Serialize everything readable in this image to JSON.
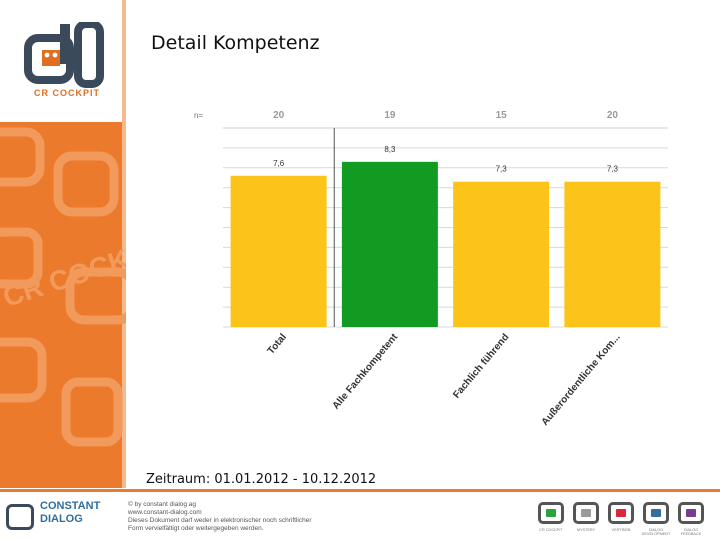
{
  "page": {
    "title": "Detail Kompetenz",
    "period": "Zeitraum: 01.01.2012 - 10.12.2012"
  },
  "branding": {
    "logo_text": "CR COCKPIT",
    "watermark_text": "CR COCKPIT",
    "footer_brand_line1": "CONSTANT",
    "footer_brand_line2": "DIALOG",
    "footer_lines": [
      "© by constant dialog ag",
      "www.constant-dialog.com",
      "Dieses Dokument darf weder in elektronischer noch schriftlicher",
      "Form vervielfältigt oder weitergegeben werden."
    ],
    "footer_icons": [
      {
        "name": "cr-cockpit",
        "color": "#2aa33a",
        "label": "CR COCKPIT"
      },
      {
        "name": "mystery",
        "color": "#9a9a9a",
        "label": "MYSTERY"
      },
      {
        "name": "vertrieb",
        "color": "#d8283a",
        "label": "VERTRIEB"
      },
      {
        "name": "dialog-development",
        "color": "#2f6e9e",
        "label": "DIALOG DEVELOPMENT"
      },
      {
        "name": "dialog-feedback",
        "color": "#7a3a8e",
        "label": "DIALOG FEEDBACK"
      }
    ],
    "colors": {
      "orange": "#ec7a2c",
      "dark": "#3a4a5a"
    }
  },
  "chart_data": {
    "type": "bar",
    "title": "",
    "n_label": "n=",
    "categories": [
      "Total",
      "Alle Fachkompetent",
      "Fachlich führend",
      "Außerordentliche Kom..."
    ],
    "n_values": [
      "20",
      "19",
      "15",
      "20"
    ],
    "values": [
      7.6,
      8.3,
      7.3,
      7.3
    ],
    "value_labels": [
      "7,6",
      "8,3",
      "7,3",
      "7,3"
    ],
    "colors": [
      "#fcc419",
      "#129b23",
      "#fcc419",
      "#fcc419"
    ],
    "ylim": [
      0,
      10
    ],
    "grid": true,
    "xlabel": "",
    "ylabel": ""
  }
}
